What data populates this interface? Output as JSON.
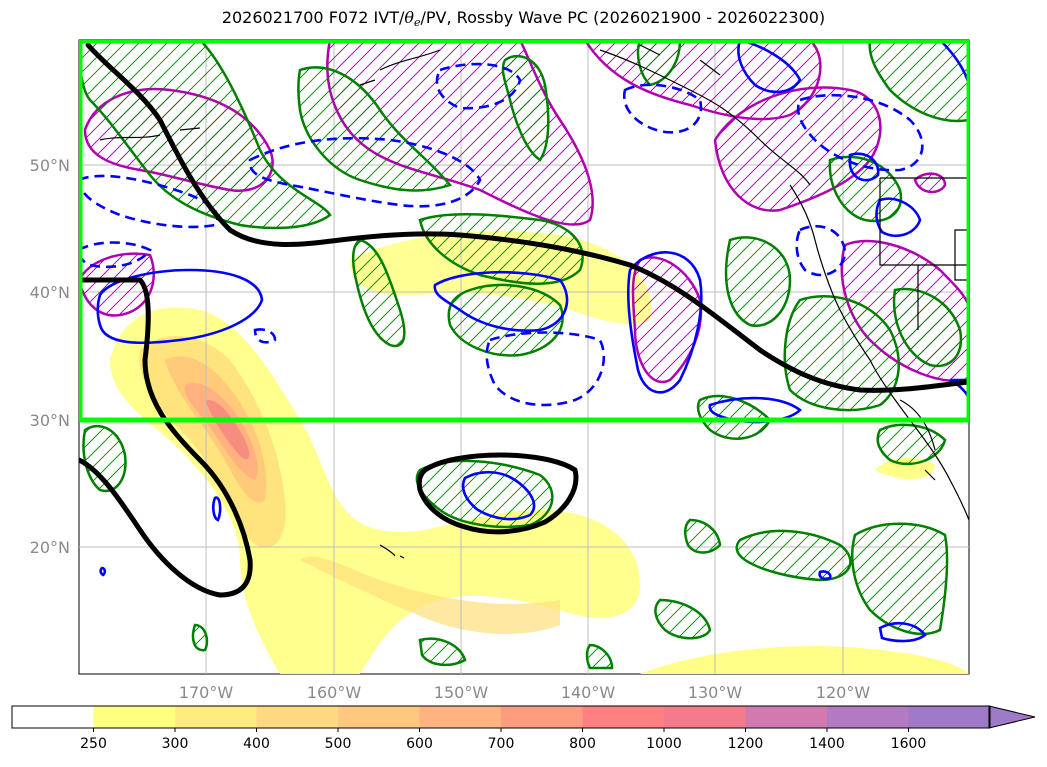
{
  "header": {
    "title_pre": "2026021700 F072 IVT/",
    "title_theta": "θ",
    "title_sub": "e",
    "title_post": "/PV, Rossby Wave PC (2026021900 - 2026022300)"
  },
  "map": {
    "lat_labels": [
      "50°N",
      "40°N",
      "30°N",
      "20°N"
    ],
    "lon_labels": [
      "170°W",
      "160°W",
      "150°W",
      "140°W",
      "130°W",
      "120°W"
    ],
    "colors": {
      "box": "#00ff00",
      "pv_contour": "#000000",
      "theta_pos": "#0000ff",
      "theta_neg": "#0000ff",
      "hatch_green": "#008000",
      "hatch_magenta": "#b000b0"
    }
  },
  "colorbar": {
    "ticks": [
      "250",
      "300",
      "400",
      "500",
      "600",
      "700",
      "800",
      "1000",
      "1200",
      "1400",
      "1600"
    ],
    "colors": [
      "#ffffff",
      "#ffff80",
      "#ffeb80",
      "#ffd980",
      "#ffc880",
      "#ffb380",
      "#ff9c80",
      "#ff8080",
      "#f27a8a",
      "#d27ab0",
      "#b27ac0",
      "#9f7ac8"
    ]
  }
}
